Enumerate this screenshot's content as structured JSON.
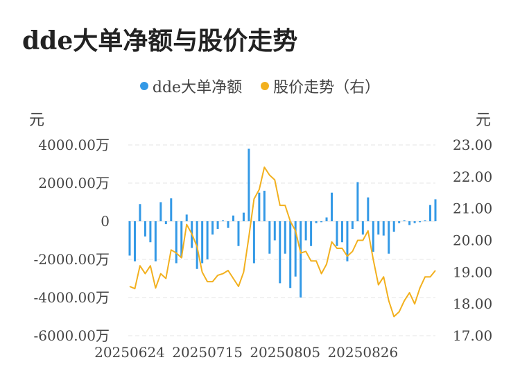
{
  "title": "dde大单净额与股价走势",
  "legend": {
    "series1": "dde大单净额",
    "series2": "股价走势（右）"
  },
  "units": {
    "left": "元",
    "right": "元"
  },
  "colors": {
    "bar": "#3399e6",
    "line": "#f2b01e",
    "grid": "#e6e6e6"
  },
  "chart_data": {
    "type": "bar+line",
    "title": "dde大单净额与股价走势",
    "x_tick_labels": [
      "20250624",
      "20250715",
      "20250805",
      "20250826"
    ],
    "x_tick_indices": [
      0,
      15,
      30,
      45
    ],
    "left_axis": {
      "unit": "元",
      "ylim": [
        -6000,
        4000
      ],
      "ticks": [
        4000,
        2000,
        0,
        -2000,
        -4000,
        -6000
      ],
      "tick_labels": [
        "4000.00万",
        "2000.00万",
        "0",
        "-2000.00万",
        "-4000.00万",
        "-6000.00万"
      ]
    },
    "right_axis": {
      "unit": "元",
      "ylim": [
        17,
        23
      ],
      "ticks": [
        23,
        22,
        21,
        20,
        19,
        18,
        17
      ],
      "tick_labels": [
        "23.00",
        "22.00",
        "21.00",
        "20.00",
        "19.00",
        "18.00",
        "17.00"
      ]
    },
    "series": [
      {
        "name": "dde大单净额",
        "kind": "bar",
        "axis": "left",
        "unit": "万",
        "values": [
          -1800,
          -2100,
          900,
          -800,
          -1100,
          -2100,
          1000,
          -150,
          1200,
          -2200,
          -1900,
          350,
          -1400,
          -2500,
          -2200,
          -2000,
          -700,
          -400,
          50,
          -350,
          300,
          -1300,
          450,
          3800,
          -2200,
          1500,
          1600,
          -1700,
          -1000,
          -3250,
          -1700,
          -3500,
          -2900,
          -4000,
          -1000,
          -1300,
          -100,
          -50,
          200,
          1500,
          -1300,
          -1100,
          -2100,
          -400,
          2050,
          -700,
          1250,
          -1600,
          -700,
          -750,
          -1700,
          -550,
          -100,
          50,
          -200,
          -100,
          -50,
          50,
          850,
          1150
        ]
      },
      {
        "name": "股价走势（右）",
        "kind": "line",
        "axis": "right",
        "unit": "元",
        "values": [
          18.55,
          18.48,
          19.2,
          18.95,
          19.2,
          18.5,
          18.95,
          18.8,
          19.7,
          19.6,
          19.45,
          20.5,
          20.2,
          19.8,
          19.0,
          18.7,
          18.7,
          18.9,
          18.95,
          19.05,
          18.8,
          18.55,
          19.0,
          20.1,
          21.3,
          21.6,
          22.3,
          22.05,
          21.9,
          21.1,
          21.1,
          20.6,
          20.3,
          19.6,
          19.65,
          19.35,
          19.35,
          18.95,
          19.25,
          19.95,
          19.75,
          19.75,
          19.5,
          19.65,
          20.0,
          20.0,
          20.3,
          19.4,
          18.6,
          18.85,
          18.1,
          17.6,
          17.75,
          18.1,
          18.35,
          18.0,
          18.5,
          18.85,
          18.85,
          19.05
        ]
      }
    ]
  }
}
